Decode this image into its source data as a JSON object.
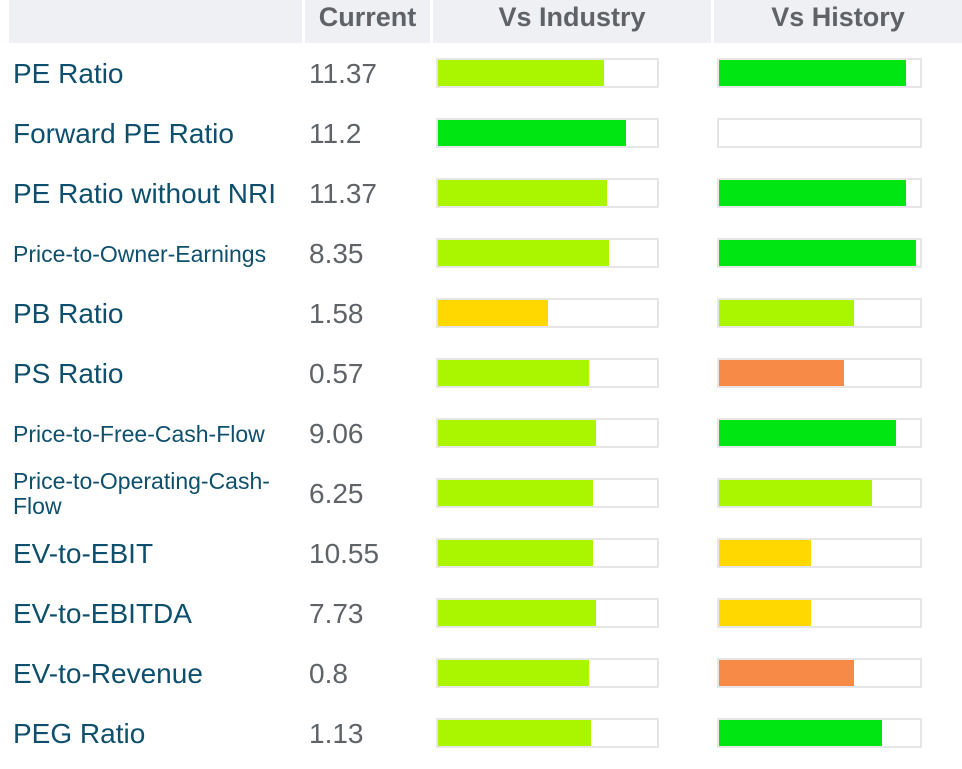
{
  "header": {
    "current": "Current",
    "vs_industry": "Vs Industry",
    "vs_history": "Vs History"
  },
  "rows": [
    {
      "metric": "PE Ratio",
      "current": "11.37",
      "industry": {
        "fraction": 0.76,
        "color": "#aaf500"
      },
      "history": {
        "fraction": 0.93,
        "color": "#00e613"
      }
    },
    {
      "metric": "Forward PE Ratio",
      "current": "11.2",
      "industry": {
        "fraction": 0.86,
        "color": "#00e613"
      },
      "history": {
        "fraction": 0.0,
        "color": "#ffffff"
      }
    },
    {
      "metric": "PE Ratio without NRI",
      "current": "11.37",
      "industry": {
        "fraction": 0.77,
        "color": "#aaf500"
      },
      "history": {
        "fraction": 0.93,
        "color": "#00e613"
      }
    },
    {
      "metric": "Price-to-Owner-Earnings",
      "current": "8.35",
      "industry": {
        "fraction": 0.78,
        "color": "#aaf500"
      },
      "history": {
        "fraction": 0.98,
        "color": "#00e613"
      }
    },
    {
      "metric": "PB Ratio",
      "current": "1.58",
      "industry": {
        "fraction": 0.5,
        "color": "#ffd800"
      },
      "history": {
        "fraction": 0.67,
        "color": "#aaf500"
      }
    },
    {
      "metric": "PS Ratio",
      "current": "0.57",
      "industry": {
        "fraction": 0.69,
        "color": "#aaf500"
      },
      "history": {
        "fraction": 0.62,
        "color": "#f78a46"
      }
    },
    {
      "metric": "Price-to-Free-Cash-Flow",
      "current": "9.06",
      "industry": {
        "fraction": 0.72,
        "color": "#aaf500"
      },
      "history": {
        "fraction": 0.88,
        "color": "#00e613"
      }
    },
    {
      "metric": "Price-to-Operating-Cash-Flow",
      "current": "6.25",
      "industry": {
        "fraction": 0.71,
        "color": "#aaf500"
      },
      "history": {
        "fraction": 0.76,
        "color": "#aaf500"
      }
    },
    {
      "metric": "EV-to-EBIT",
      "current": "10.55",
      "industry": {
        "fraction": 0.71,
        "color": "#aaf500"
      },
      "history": {
        "fraction": 0.46,
        "color": "#ffd800"
      }
    },
    {
      "metric": "EV-to-EBITDA",
      "current": "7.73",
      "industry": {
        "fraction": 0.72,
        "color": "#aaf500"
      },
      "history": {
        "fraction": 0.46,
        "color": "#ffd800"
      }
    },
    {
      "metric": "EV-to-Revenue",
      "current": "0.8",
      "industry": {
        "fraction": 0.69,
        "color": "#aaf500"
      },
      "history": {
        "fraction": 0.67,
        "color": "#f78a46"
      }
    },
    {
      "metric": "PEG Ratio",
      "current": "1.13",
      "industry": {
        "fraction": 0.7,
        "color": "#aaf500"
      },
      "history": {
        "fraction": 0.81,
        "color": "#00e613"
      }
    }
  ]
}
